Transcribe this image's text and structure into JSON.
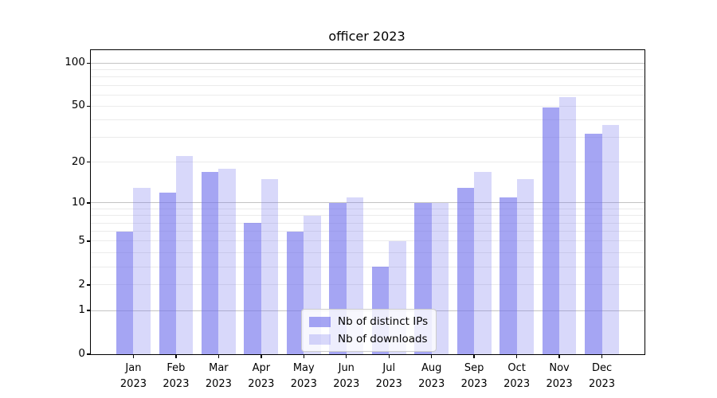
{
  "title": "officer 2023",
  "chart_data": {
    "type": "bar",
    "title": "officer 2023",
    "categories": [
      "Jan",
      "Feb",
      "Mar",
      "Apr",
      "May",
      "Jun",
      "Jul",
      "Aug",
      "Sep",
      "Oct",
      "Nov",
      "Dec"
    ],
    "category_year": "2023",
    "series": [
      {
        "name": "Nb of distinct IPs",
        "color": "rgba(110,110,235,0.62)",
        "rendered_hex": "#a3a3f2",
        "values": [
          6,
          12,
          17,
          7,
          6,
          10,
          3,
          10,
          13,
          11,
          49,
          32
        ]
      },
      {
        "name": "Nb of downloads",
        "color": "rgba(110,110,235,0.27)",
        "rendered_hex": "#d8d8f8",
        "values": [
          13,
          22,
          18,
          15,
          8,
          11,
          5,
          10,
          17,
          15,
          58,
          37
        ]
      }
    ],
    "xlabel": "",
    "ylabel": "",
    "yscale": "log1p",
    "ylim": [
      0,
      124
    ],
    "yticks": [
      0,
      1,
      2,
      5,
      10,
      20,
      50,
      100
    ],
    "major_gridline_values": [
      1,
      10,
      100
    ],
    "minor_gridline_values": [
      2,
      3,
      4,
      6,
      7,
      8,
      9,
      20,
      30,
      40,
      60,
      70,
      80,
      90,
      2,
      5,
      50
    ],
    "grid": true,
    "legend_position": "lower center",
    "colors": {
      "grid_major": "#c4c4c4",
      "grid_minor": "#ebebeb",
      "spine": "#000000",
      "legend_border": "#cccccc"
    }
  }
}
